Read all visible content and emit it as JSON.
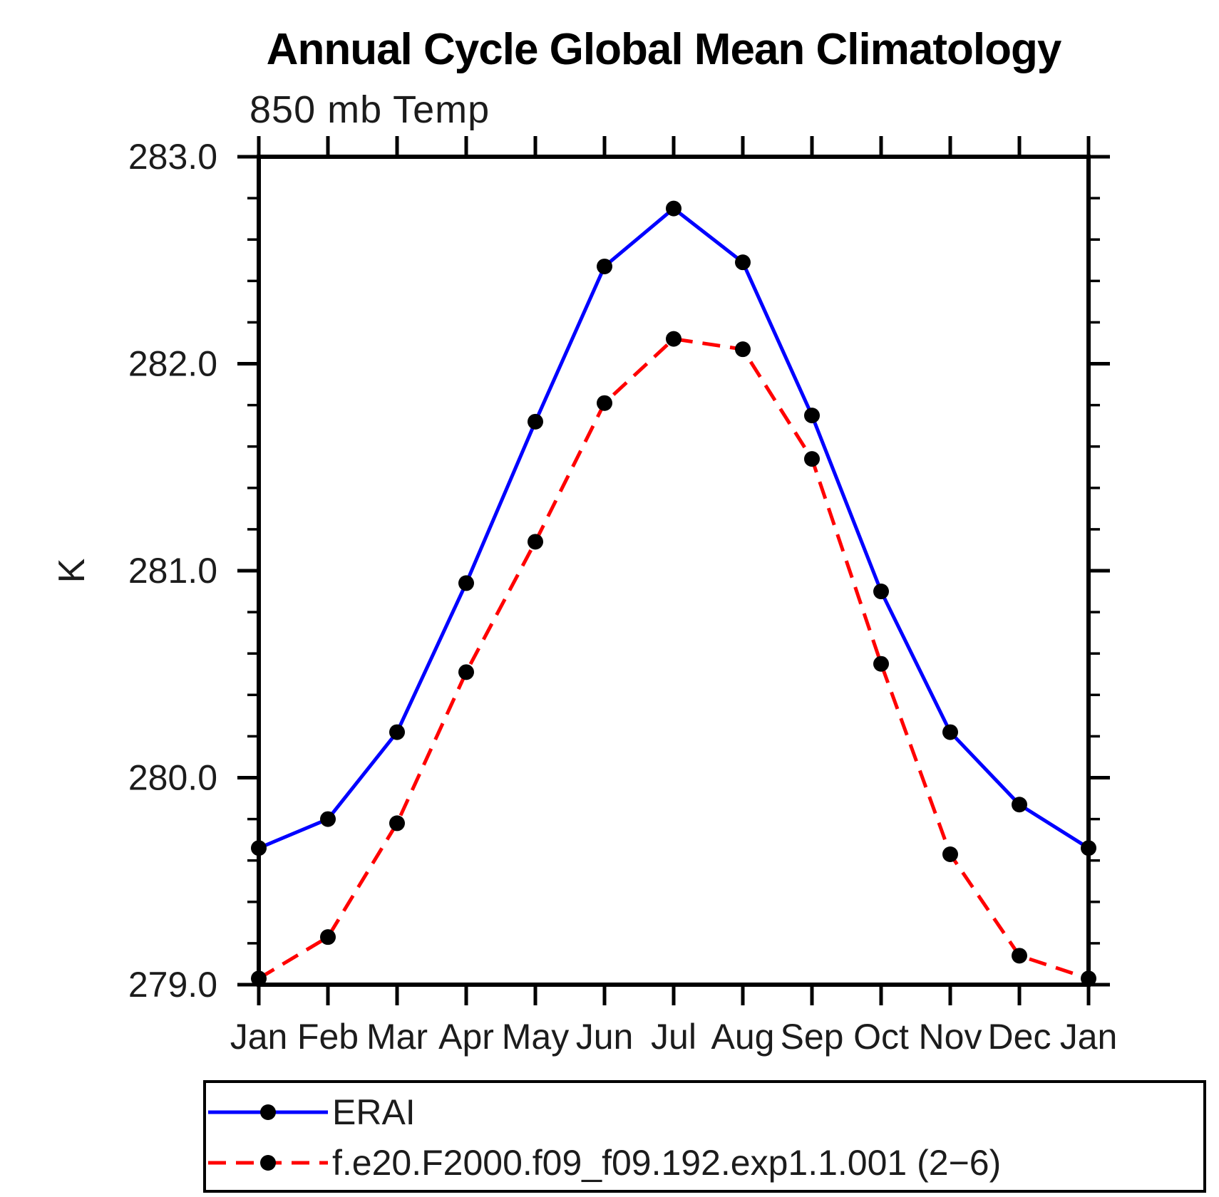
{
  "chart_data": {
    "type": "line",
    "title": "Annual Cycle Global Mean Climatology",
    "subtitle": "850 mb Temp",
    "ylabel": "K",
    "categories": [
      "Jan",
      "Feb",
      "Mar",
      "Apr",
      "May",
      "Jun",
      "Jul",
      "Aug",
      "Sep",
      "Oct",
      "Nov",
      "Dec",
      "Jan"
    ],
    "ylim": [
      279.0,
      283.0
    ],
    "y_major_ticks": [
      279.0,
      280.0,
      281.0,
      282.0,
      283.0
    ],
    "y_tick_labels": [
      "279.0",
      "280.0",
      "281.0",
      "282.0",
      "283.0"
    ],
    "y_minor_step": 0.2,
    "grid": false,
    "legend_position": "bottom-left-box",
    "frame_color": "#000000",
    "marker_color": "#000000",
    "series": [
      {
        "name": "ERAI",
        "color": "#0000ff",
        "line_style": "solid",
        "marker": "filled-circle",
        "values": [
          279.66,
          279.8,
          280.22,
          280.94,
          281.72,
          282.47,
          282.75,
          282.49,
          281.75,
          280.9,
          280.22,
          279.87,
          279.66
        ]
      },
      {
        "name": "f.e20.F2000.f09_f09.192.exp1.1.001 (2−6)",
        "color": "#ff0000",
        "line_style": "dashed",
        "marker": "filled-circle",
        "values": [
          279.03,
          279.23,
          279.78,
          280.51,
          281.14,
          281.81,
          282.12,
          282.07,
          281.54,
          280.55,
          279.63,
          279.14,
          279.03
        ]
      }
    ]
  }
}
